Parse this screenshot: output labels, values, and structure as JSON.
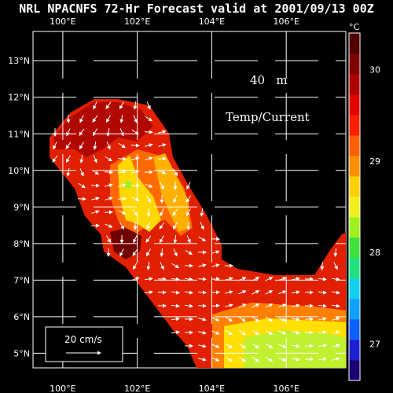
{
  "title": "NRL NPACNFS 72-Hr Forecast valid at 2001/09/13 00Z",
  "map": {
    "lon_range": [
      99.2,
      107.6
    ],
    "lat_range": [
      4.6,
      13.8
    ],
    "lon_ticks": [
      {
        "value": 100,
        "label": "100°E"
      },
      {
        "value": 102,
        "label": "102°E"
      },
      {
        "value": 104,
        "label": "104°E"
      },
      {
        "value": 106,
        "label": "106°E"
      }
    ],
    "lat_ticks": [
      {
        "value": 5,
        "label": "5°N"
      },
      {
        "value": 6,
        "label": "6°N"
      },
      {
        "value": 7,
        "label": "7°N"
      },
      {
        "value": 8,
        "label": "8°N"
      },
      {
        "value": 9,
        "label": "9°N"
      },
      {
        "value": 10,
        "label": "10°N"
      },
      {
        "value": 11,
        "label": "11°N"
      },
      {
        "value": 12,
        "label": "12°N"
      },
      {
        "value": 13,
        "label": "13°N"
      }
    ],
    "depth_label": "40   m",
    "field_label": "Temp/Current",
    "scale_arrow_label": "20 cm/s",
    "background_color": "#000000",
    "grid_color": "#ffffff",
    "vector_color": "#ffffff"
  },
  "colorbar": {
    "unit": "°C",
    "ticks": [
      {
        "value": 30,
        "label": "30"
      },
      {
        "value": 29,
        "label": "29"
      },
      {
        "value": 28,
        "label": "28"
      },
      {
        "value": 27,
        "label": "27"
      }
    ],
    "range": [
      26.6,
      30.4
    ],
    "colors": [
      "#1a0070",
      "#1a20d0",
      "#1060ff",
      "#10a0ff",
      "#10d0f0",
      "#20e080",
      "#40e040",
      "#a0f020",
      "#f0f020",
      "#ffd000",
      "#ff9000",
      "#ff6000",
      "#ff2000",
      "#e00000",
      "#b00000",
      "#800000",
      "#500000"
    ]
  }
}
